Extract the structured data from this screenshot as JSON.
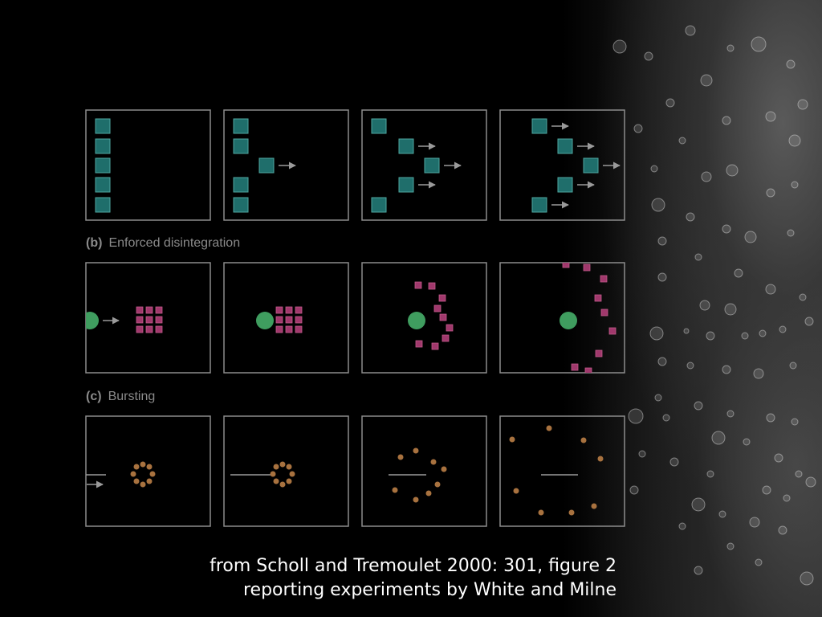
{
  "rows": [
    {
      "letter": "",
      "title": ""
    },
    {
      "letter": "(b)",
      "title": "Enforced disintegration"
    },
    {
      "letter": "(c)",
      "title": "Bursting"
    }
  ],
  "caption": {
    "line1": "from Scholl and Tremoulet 2000: 301, figure 2",
    "line2": "reporting experiments by White and Milne"
  },
  "colors": {
    "square_teal": "#1f6e6b",
    "square_teal_border": "#4fa7a0",
    "circle_green": "#3f9d5f",
    "square_magenta": "#a0386c",
    "dot_brown": "#a8723f",
    "panel_border": "#8c8c8c"
  }
}
